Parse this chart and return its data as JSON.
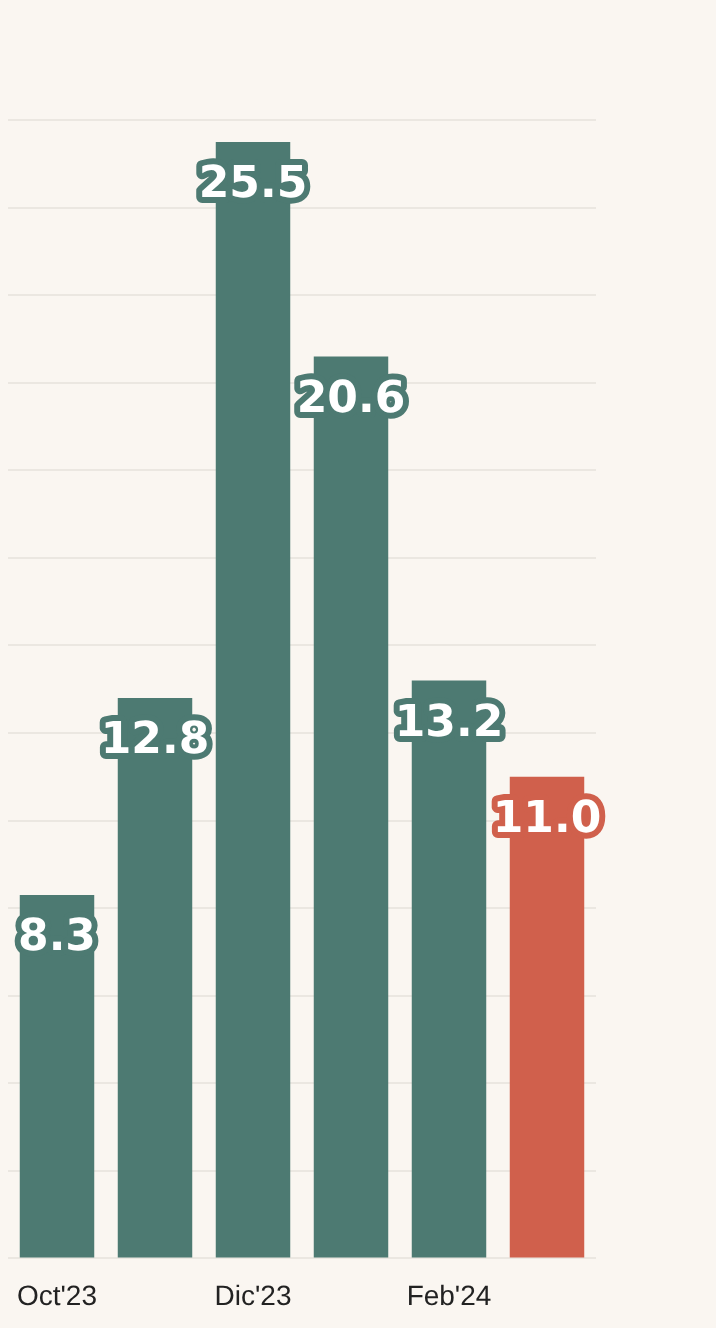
{
  "chart_data": {
    "type": "bar",
    "categories": [
      "Oct'23",
      null,
      "Dic'23",
      null,
      "Feb'24",
      null
    ],
    "values": [
      8.3,
      12.8,
      25.5,
      20.6,
      13.2,
      11.0
    ],
    "colors": [
      "#4d7a72",
      "#4d7a72",
      "#4d7a72",
      "#4d7a72",
      "#4d7a72",
      "#d0604c"
    ],
    "value_labels": [
      "8.3",
      "12.8",
      "25.5",
      "20.6",
      "13.2",
      "11.0"
    ],
    "ylim": [
      0,
      26
    ],
    "yticks": [
      {
        "value": 0,
        "label": null
      },
      {
        "value": 2,
        "label": null
      },
      {
        "value": 4,
        "label": null
      },
      {
        "value": 6,
        "label": null
      },
      {
        "value": 8,
        "label": null
      },
      {
        "value": 10,
        "label": null
      },
      {
        "value": 12,
        "label": null
      },
      {
        "value": 14,
        "label": null
      },
      {
        "value": 16,
        "label": null
      },
      {
        "value": 18,
        "label": null
      },
      {
        "value": 20,
        "label": null
      },
      {
        "value": 22,
        "label": null
      },
      {
        "value": 24,
        "label": null
      },
      {
        "value": 26,
        "label": null
      }
    ],
    "grid": "y",
    "tick_labels": "x"
  }
}
